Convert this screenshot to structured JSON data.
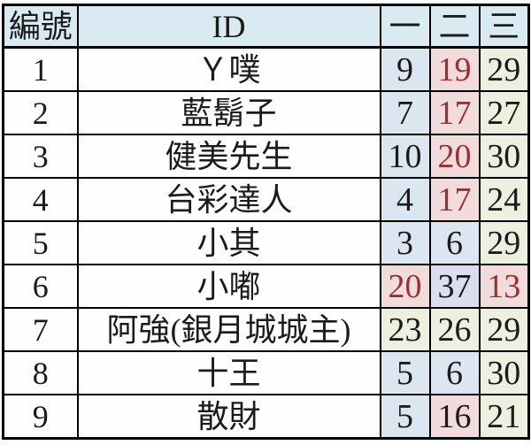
{
  "table": {
    "columns": [
      {
        "key": "num",
        "label": "編號"
      },
      {
        "key": "id",
        "label": "ID"
      },
      {
        "key": "c1",
        "label": "一"
      },
      {
        "key": "c2",
        "label": "二"
      },
      {
        "key": "c3",
        "label": "三"
      }
    ],
    "rows": [
      {
        "num": "1",
        "id": "Ｙ噗",
        "cells": [
          {
            "v": "9",
            "bg": "blue",
            "fg": "black"
          },
          {
            "v": "19",
            "bg": "pink",
            "fg": "red"
          },
          {
            "v": "29",
            "bg": "green",
            "fg": "black"
          }
        ]
      },
      {
        "num": "2",
        "id": "藍鬍子",
        "cells": [
          {
            "v": "7",
            "bg": "blue",
            "fg": "black"
          },
          {
            "v": "17",
            "bg": "pink",
            "fg": "red"
          },
          {
            "v": "27",
            "bg": "green",
            "fg": "black"
          }
        ]
      },
      {
        "num": "3",
        "id": "健美先生",
        "cells": [
          {
            "v": "10",
            "bg": "blue",
            "fg": "black"
          },
          {
            "v": "20",
            "bg": "pink",
            "fg": "red"
          },
          {
            "v": "30",
            "bg": "green",
            "fg": "black"
          }
        ]
      },
      {
        "num": "4",
        "id": "台彩達人",
        "cells": [
          {
            "v": "4",
            "bg": "blue",
            "fg": "black"
          },
          {
            "v": "17",
            "bg": "pink",
            "fg": "red"
          },
          {
            "v": "24",
            "bg": "green",
            "fg": "black"
          }
        ]
      },
      {
        "num": "5",
        "id": "小其",
        "cells": [
          {
            "v": "3",
            "bg": "blue",
            "fg": "black"
          },
          {
            "v": "6",
            "bg": "blue",
            "fg": "black"
          },
          {
            "v": "29",
            "bg": "green",
            "fg": "black"
          }
        ]
      },
      {
        "num": "6",
        "id": "小嘟",
        "cells": [
          {
            "v": "20",
            "bg": "pink",
            "fg": "red"
          },
          {
            "v": "37",
            "bg": "lavender",
            "fg": "black"
          },
          {
            "v": "13",
            "bg": "pink",
            "fg": "red"
          }
        ]
      },
      {
        "num": "7",
        "id": "阿強(銀月城城主)",
        "cells": [
          {
            "v": "23",
            "bg": "green",
            "fg": "black"
          },
          {
            "v": "26",
            "bg": "green",
            "fg": "black"
          },
          {
            "v": "29",
            "bg": "green",
            "fg": "black"
          }
        ]
      },
      {
        "num": "8",
        "id": "十王",
        "cells": [
          {
            "v": "5",
            "bg": "blue",
            "fg": "black"
          },
          {
            "v": "6",
            "bg": "blue",
            "fg": "black"
          },
          {
            "v": "30",
            "bg": "green",
            "fg": "black"
          }
        ]
      },
      {
        "num": "9",
        "id": "散財",
        "cells": [
          {
            "v": "5",
            "bg": "blue",
            "fg": "black"
          },
          {
            "v": "16",
            "bg": "pink",
            "fg": "black"
          },
          {
            "v": "21",
            "bg": "green",
            "fg": "black"
          }
        ]
      }
    ]
  },
  "colors": {
    "header_bg": "#d9eaf2",
    "blue": "#dce6f1",
    "pink": "#f2dcdb",
    "green": "#ebf1de",
    "lavender": "#dcddee",
    "white": "#fefefc",
    "black": "#1b1b1b",
    "red": "#9c2f33",
    "border": "#000000"
  }
}
